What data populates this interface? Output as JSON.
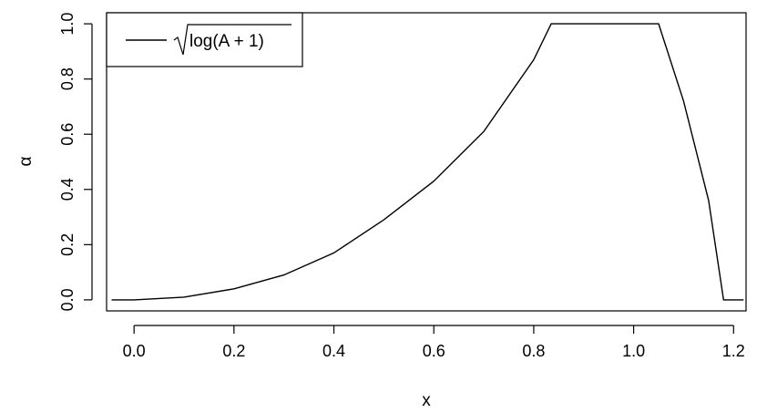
{
  "chart_data": {
    "type": "line",
    "xlabel": "x",
    "ylabel": "α",
    "xlim": [
      -0.055,
      1.225
    ],
    "ylim": [
      -0.04,
      1.04
    ],
    "x_ticks": [
      "0.0",
      "0.2",
      "0.4",
      "0.6",
      "0.8",
      "1.0",
      "1.2"
    ],
    "x_tick_values": [
      0,
      0.2,
      0.4,
      0.6,
      0.8,
      1.0,
      1.2
    ],
    "y_ticks": [
      "0.0",
      "0.2",
      "0.4",
      "0.6",
      "0.8",
      "1.0"
    ],
    "y_tick_values": [
      0,
      0.2,
      0.4,
      0.6,
      0.8,
      1.0
    ],
    "grid": false,
    "legend": {
      "position": "top-left",
      "entries": [
        {
          "label": "log(A + 1)",
          "color": "#000000",
          "sqrt_wrapped": true
        }
      ]
    },
    "series": [
      {
        "name": "log(A + 1)",
        "color": "#000000",
        "x": [
          -0.045,
          0.0,
          0.1,
          0.2,
          0.3,
          0.4,
          0.5,
          0.6,
          0.7,
          0.8,
          0.835,
          1.05,
          1.1,
          1.15,
          1.18,
          1.22
        ],
        "y": [
          0.0,
          0.0,
          0.01,
          0.04,
          0.09,
          0.17,
          0.29,
          0.43,
          0.61,
          0.87,
          1.0,
          1.0,
          0.72,
          0.36,
          0.0,
          0.0
        ]
      }
    ]
  }
}
